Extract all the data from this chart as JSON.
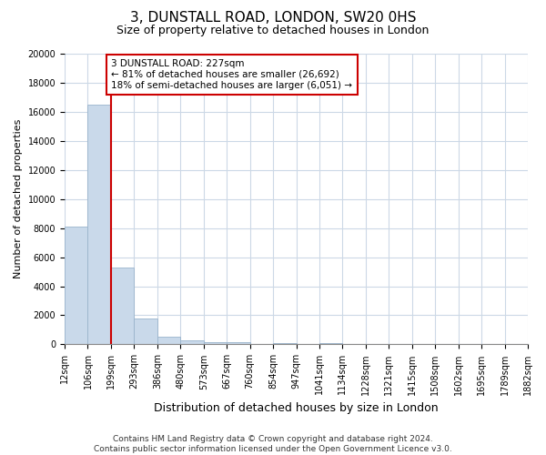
{
  "title": "3, DUNSTALL ROAD, LONDON, SW20 0HS",
  "subtitle": "Size of property relative to detached houses in London",
  "xlabel": "Distribution of detached houses by size in London",
  "ylabel": "Number of detached properties",
  "bar_values": [
    8100,
    16500,
    5300,
    1750,
    500,
    250,
    150,
    150,
    0,
    100,
    0,
    100,
    0,
    0,
    0,
    0,
    0,
    0,
    0,
    0
  ],
  "bar_labels": [
    "12sqm",
    "106sqm",
    "199sqm",
    "293sqm",
    "386sqm",
    "480sqm",
    "573sqm",
    "667sqm",
    "760sqm",
    "854sqm",
    "947sqm",
    "1041sqm",
    "1134sqm",
    "1228sqm",
    "1321sqm",
    "1415sqm",
    "1508sqm",
    "1602sqm",
    "1695sqm",
    "1789sqm",
    "1882sqm"
  ],
  "bar_color": "#c9d9ea",
  "bar_edge_color": "#9ab4cc",
  "vline_color": "#cc0000",
  "vline_x": 1.5,
  "annotation_text_line1": "3 DUNSTALL ROAD: 227sqm",
  "annotation_text_line2": "← 81% of detached houses are smaller (26,692)",
  "annotation_text_line3": "18% of semi-detached houses are larger (6,051) →",
  "annotation_box_color": "#ffffff",
  "annotation_box_edge_color": "#cc0000",
  "ylim": [
    0,
    20000
  ],
  "yticks": [
    0,
    2000,
    4000,
    6000,
    8000,
    10000,
    12000,
    14000,
    16000,
    18000,
    20000
  ],
  "footnote1": "Contains HM Land Registry data © Crown copyright and database right 2024.",
  "footnote2": "Contains public sector information licensed under the Open Government Licence v3.0.",
  "background_color": "#ffffff",
  "grid_color": "#ccd8e6",
  "title_fontsize": 11,
  "subtitle_fontsize": 9,
  "ylabel_fontsize": 8,
  "xlabel_fontsize": 9,
  "tick_fontsize": 7,
  "footnote_fontsize": 6.5
}
